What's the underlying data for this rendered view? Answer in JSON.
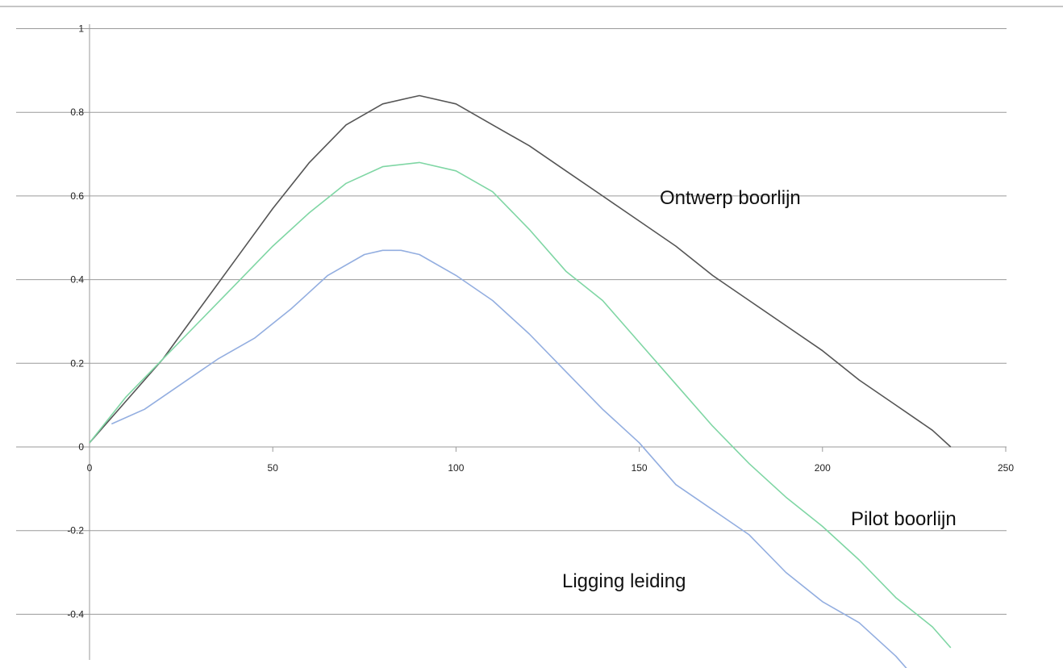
{
  "chart_data": {
    "type": "line",
    "title": "",
    "xlabel": "",
    "ylabel": "",
    "xlim": [
      0,
      250
    ],
    "ylim": [
      -0.52,
      1
    ],
    "grid": true,
    "x_ticks": [
      "0",
      "50",
      "100",
      "150",
      "200",
      "250"
    ],
    "y_ticks": [
      "1",
      "0.8",
      "0.6",
      "0.4",
      "0.2",
      "0",
      "-0.2",
      "-0.4"
    ],
    "series": [
      {
        "name": "Ontwerp boorlijn",
        "color": "#555555",
        "points": [
          [
            0,
            0.01
          ],
          [
            10,
            0.11
          ],
          [
            20,
            0.21
          ],
          [
            30,
            0.33
          ],
          [
            40,
            0.45
          ],
          [
            50,
            0.57
          ],
          [
            60,
            0.68
          ],
          [
            70,
            0.77
          ],
          [
            80,
            0.82
          ],
          [
            90,
            0.84
          ],
          [
            100,
            0.82
          ],
          [
            110,
            0.77
          ],
          [
            120,
            0.72
          ],
          [
            130,
            0.66
          ],
          [
            140,
            0.6
          ],
          [
            150,
            0.54
          ],
          [
            160,
            0.48
          ],
          [
            170,
            0.41
          ],
          [
            180,
            0.35
          ],
          [
            190,
            0.29
          ],
          [
            200,
            0.23
          ],
          [
            210,
            0.16
          ],
          [
            220,
            0.1
          ],
          [
            230,
            0.04
          ],
          [
            235,
            0.0
          ]
        ]
      },
      {
        "name": "Pilot boorlijn",
        "color": "#7fd6a4",
        "points": [
          [
            0,
            0.01
          ],
          [
            10,
            0.12
          ],
          [
            20,
            0.21
          ],
          [
            30,
            0.3
          ],
          [
            40,
            0.39
          ],
          [
            50,
            0.48
          ],
          [
            60,
            0.56
          ],
          [
            70,
            0.63
          ],
          [
            80,
            0.67
          ],
          [
            90,
            0.68
          ],
          [
            100,
            0.66
          ],
          [
            110,
            0.61
          ],
          [
            120,
            0.52
          ],
          [
            130,
            0.42
          ],
          [
            140,
            0.35
          ],
          [
            150,
            0.25
          ],
          [
            160,
            0.15
          ],
          [
            170,
            0.05
          ],
          [
            180,
            -0.04
          ],
          [
            190,
            -0.12
          ],
          [
            200,
            -0.19
          ],
          [
            210,
            -0.27
          ],
          [
            220,
            -0.36
          ],
          [
            230,
            -0.43
          ],
          [
            235,
            -0.48
          ]
        ]
      },
      {
        "name": "Ligging leiding",
        "color": "#93aee0",
        "points": [
          [
            6,
            0.055
          ],
          [
            15,
            0.09
          ],
          [
            25,
            0.15
          ],
          [
            35,
            0.21
          ],
          [
            45,
            0.26
          ],
          [
            55,
            0.33
          ],
          [
            65,
            0.41
          ],
          [
            75,
            0.46
          ],
          [
            80,
            0.47
          ],
          [
            85,
            0.47
          ],
          [
            90,
            0.46
          ],
          [
            100,
            0.41
          ],
          [
            110,
            0.35
          ],
          [
            120,
            0.27
          ],
          [
            130,
            0.18
          ],
          [
            140,
            0.09
          ],
          [
            150,
            0.01
          ],
          [
            160,
            -0.09
          ],
          [
            170,
            -0.15
          ],
          [
            180,
            -0.21
          ],
          [
            190,
            -0.3
          ],
          [
            200,
            -0.37
          ],
          [
            210,
            -0.42
          ],
          [
            220,
            -0.5
          ],
          [
            223,
            -0.53
          ]
        ]
      }
    ]
  }
}
